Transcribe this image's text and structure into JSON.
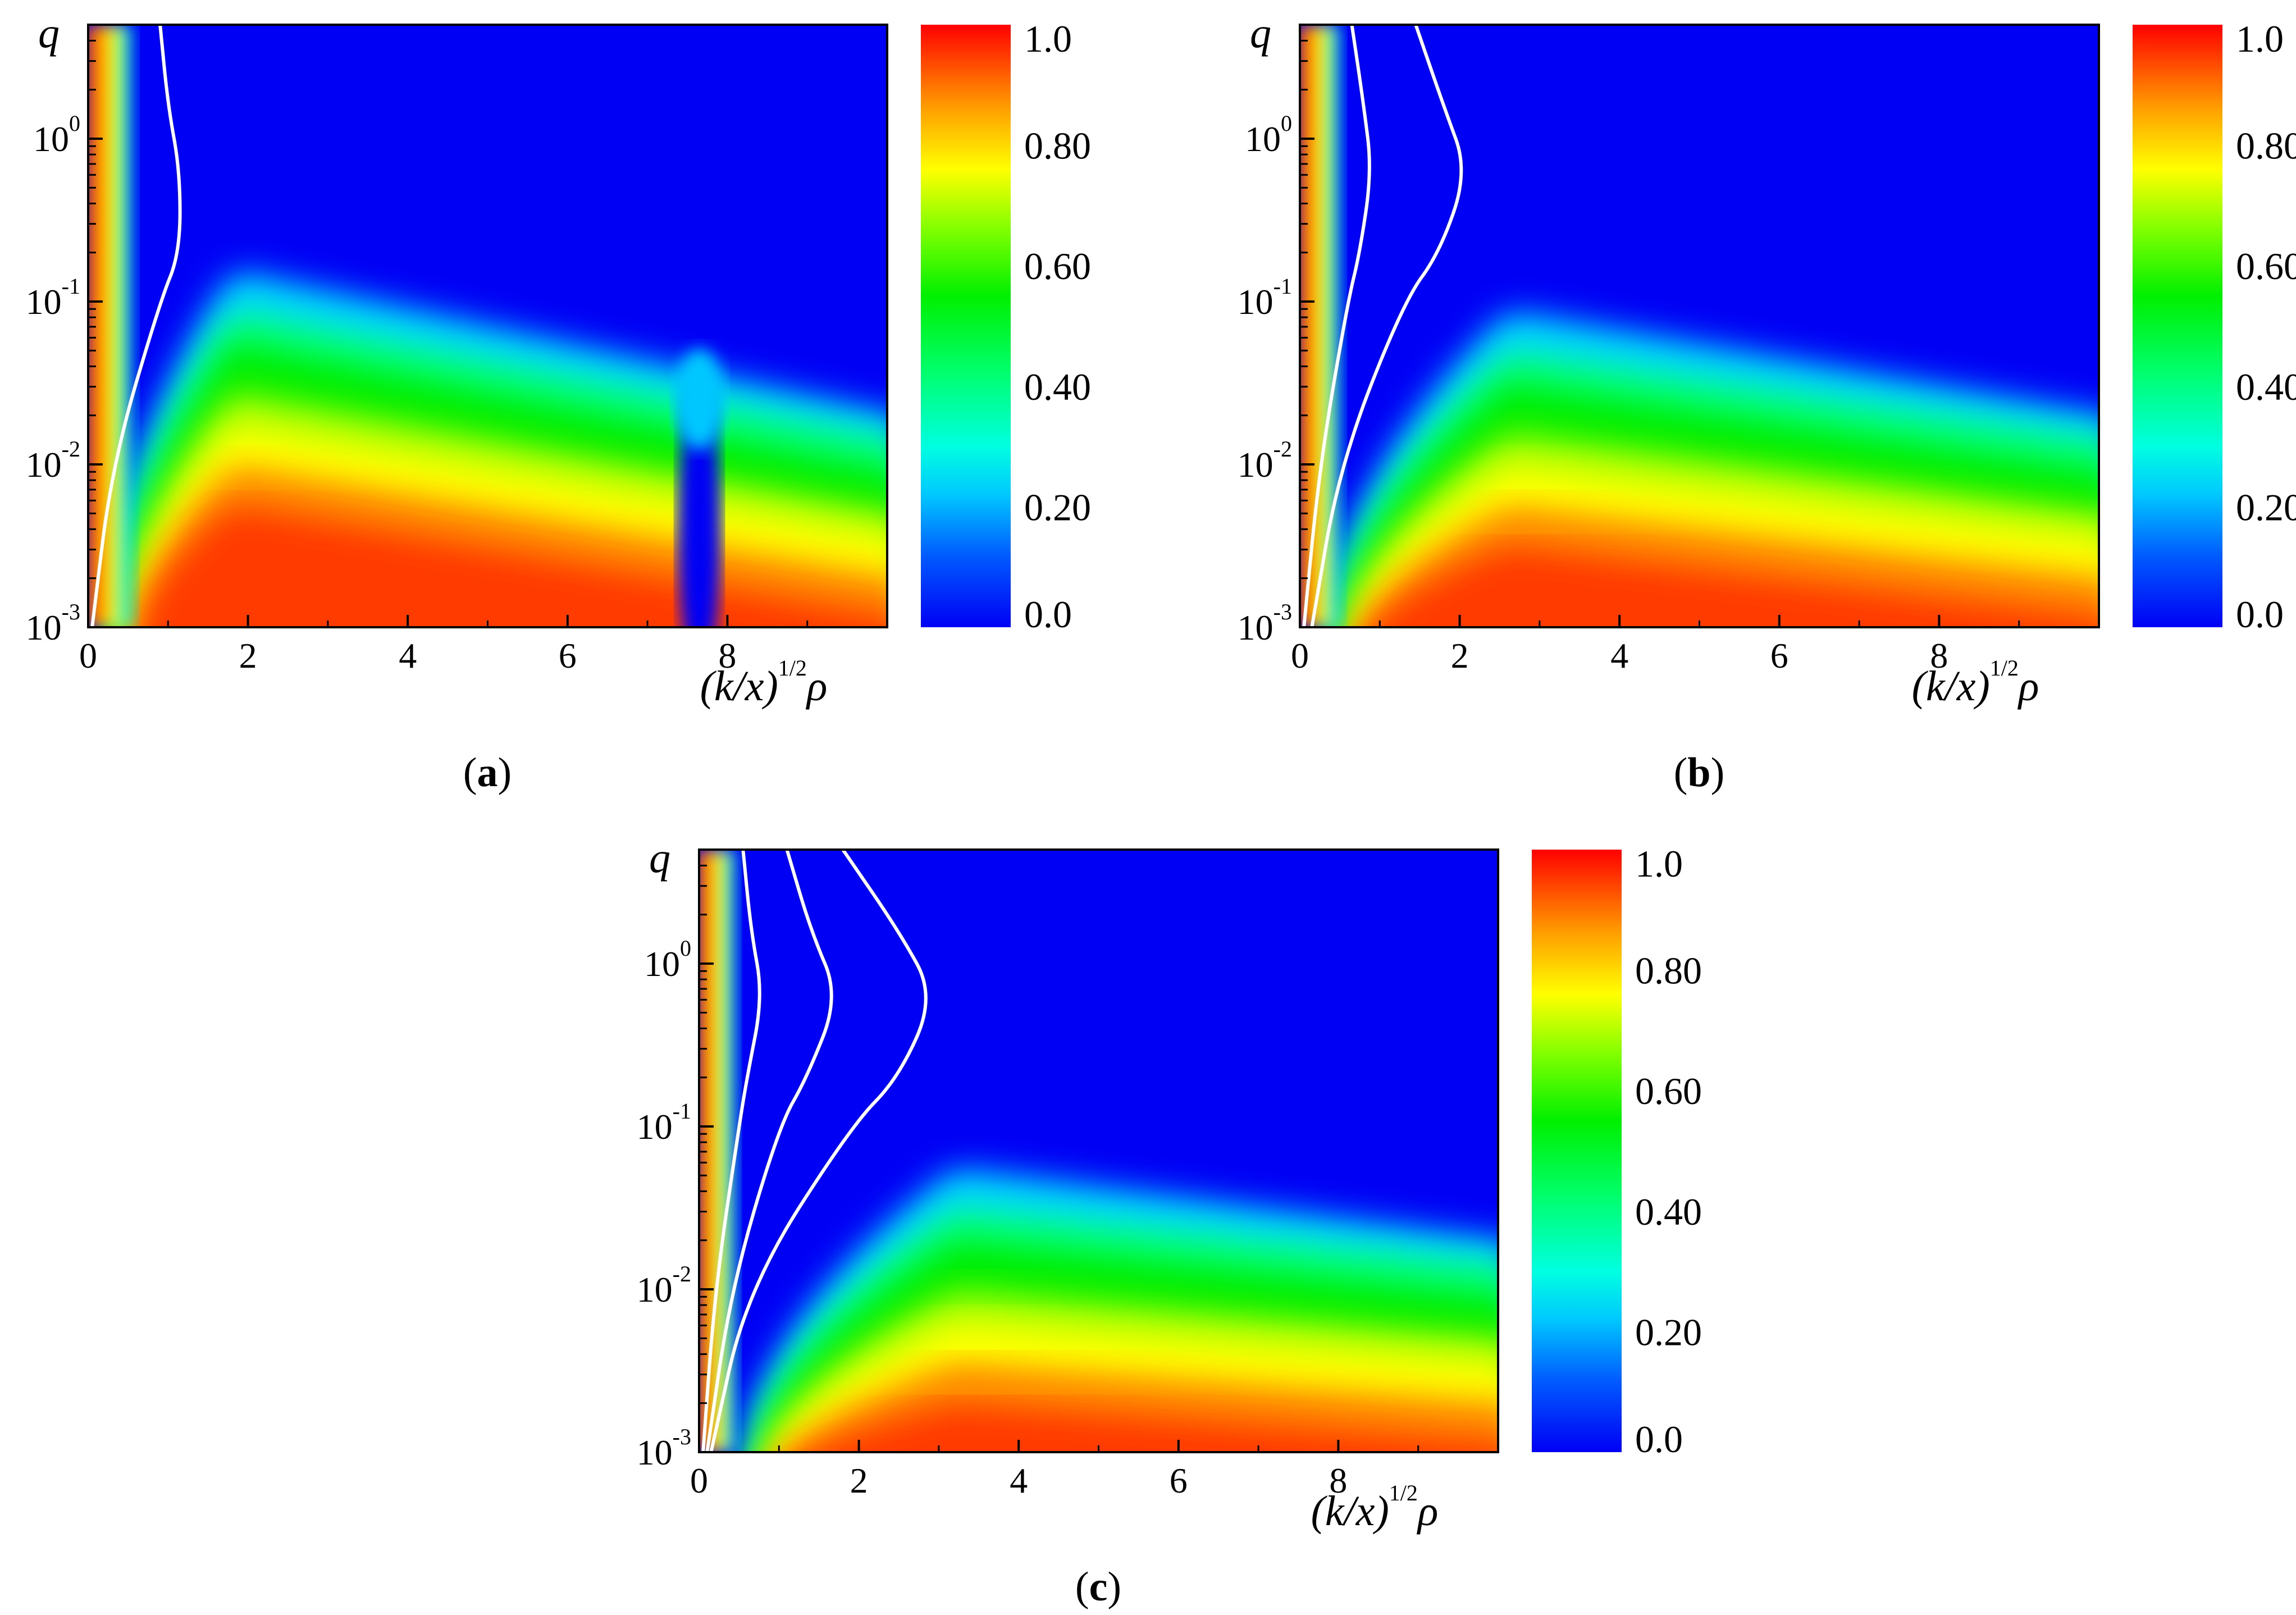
{
  "figure": {
    "panels": [
      "a",
      "b",
      "c"
    ]
  },
  "colors": {
    "c0": "#0000f5",
    "c20": "#00bfff",
    "c30": "#00ffff",
    "c40": "#00ff60",
    "c60": "#00ee00",
    "c80": "#ffff00",
    "c90": "#ff8800",
    "c100": "#ff0000",
    "contour": "#ffffff"
  },
  "chart_data": [
    {
      "type": "heatmap",
      "panel_label": "(a)",
      "xlabel": "(k/x)^1/2 ρ",
      "ylabel": "q",
      "x_ticks": [
        "0",
        "2",
        "4",
        "6",
        "8"
      ],
      "y_ticks": [
        {
          "base": "10",
          "exp": "0"
        },
        {
          "base": "10",
          "exp": "-1"
        },
        {
          "base": "10",
          "exp": "-2"
        },
        {
          "base": "10",
          "exp": "-3"
        }
      ],
      "xlim": [
        0,
        10
      ],
      "ylim_log10": [
        -3,
        0.7
      ],
      "colorbar": {
        "ticks": [
          "1.0",
          "0.80",
          "0.60",
          "0.40",
          "0.20",
          "0.0"
        ],
        "range": [
          0,
          1
        ]
      },
      "contours_pos_at_log_q": [
        -3,
        -2,
        -1,
        -0.7,
        -0.2,
        0.2,
        0.7
      ],
      "contours_x_units": [
        [
          0.05,
          0.3,
          0.9,
          1.15,
          1.15,
          1.0,
          0.9
        ]
      ],
      "regions": {
        "hot_left_strip_x": 0.4,
        "peak_x": 1.8,
        "notch_x": 7.65,
        "description": "valley of near-zero values at x≈7.65 for q<0.03"
      }
    },
    {
      "type": "heatmap",
      "panel_label": "(b)",
      "xlabel": "(k/x)^1/2 ρ",
      "ylabel": "q",
      "x_ticks": [
        "0",
        "2",
        "4",
        "6",
        "8"
      ],
      "y_ticks": [
        {
          "base": "10",
          "exp": "0"
        },
        {
          "base": "10",
          "exp": "-1"
        },
        {
          "base": "10",
          "exp": "-2"
        },
        {
          "base": "10",
          "exp": "-3"
        }
      ],
      "xlim": [
        0,
        10
      ],
      "ylim_log10": [
        -3,
        0.7
      ],
      "colorbar": {
        "ticks": [
          "1.0",
          "0.80",
          "0.60",
          "0.40",
          "0.20",
          "0.0"
        ],
        "range": [
          0,
          1
        ]
      },
      "contours_pos_at_log_q": [
        -3,
        -2,
        -1,
        -0.7,
        -0.2,
        0.2,
        0.7
      ],
      "contours_x_units": [
        [
          0.05,
          0.25,
          0.6,
          0.75,
          0.9,
          0.8,
          0.65
        ],
        [
          0.15,
          0.5,
          1.3,
          1.75,
          2.1,
          1.8,
          1.45
        ]
      ],
      "regions": {
        "peak_x": 2.6
      }
    },
    {
      "type": "heatmap",
      "panel_label": "(c)",
      "xlabel": "(k/x)^1/2 ρ",
      "ylabel": "q",
      "x_ticks": [
        "0",
        "2",
        "4",
        "6",
        "8"
      ],
      "y_ticks": [
        {
          "base": "10",
          "exp": "0"
        },
        {
          "base": "10",
          "exp": "-1"
        },
        {
          "base": "10",
          "exp": "-2"
        },
        {
          "base": "10",
          "exp": "-3"
        }
      ],
      "xlim": [
        0,
        10
      ],
      "ylim_log10": [
        -3,
        0.7
      ],
      "colorbar": {
        "ticks": [
          "1.0",
          "0.80",
          "0.60",
          "0.40",
          "0.20",
          "0.0"
        ],
        "range": [
          0,
          1
        ]
      },
      "contours_pos_at_log_q": [
        -3,
        -2,
        -1,
        -0.7,
        -0.2,
        0.2,
        0.7
      ],
      "contours_x_units": [
        [
          0.05,
          0.2,
          0.5,
          0.6,
          0.8,
          0.65,
          0.55
        ],
        [
          0.1,
          0.4,
          1.0,
          1.35,
          1.75,
          1.4,
          1.1
        ],
        [
          0.15,
          0.6,
          1.9,
          2.5,
          2.95,
          2.5,
          1.8
        ]
      ],
      "regions": {
        "peak_x": 3.2
      }
    }
  ]
}
